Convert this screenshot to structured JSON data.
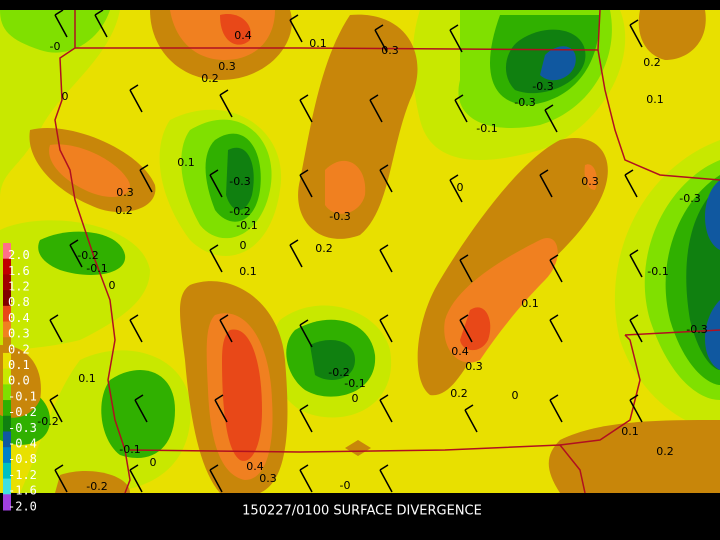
{
  "title": "150227/0100 SURFACE DIVERGENCE",
  "legend": {
    "levels": [
      {
        "label": "2.0",
        "color": "#ff7088"
      },
      {
        "label": "1.6",
        "color": "#c00000"
      },
      {
        "label": "1.2",
        "color": "#a00000"
      },
      {
        "label": "0.8",
        "color": "#800000"
      },
      {
        "label": "0.4",
        "color": "#e84818"
      },
      {
        "label": "0.3",
        "color": "#f08020"
      },
      {
        "label": "0.2",
        "color": "#c8860a"
      },
      {
        "label": "0.1",
        "color": "#e8e000"
      },
      {
        "label": "0.0",
        "color": "#c8e800"
      },
      {
        "label": "-0.1",
        "color": "#80e000"
      },
      {
        "label": "-0.2",
        "color": "#30b000"
      },
      {
        "label": "-0.3",
        "color": "#108010"
      },
      {
        "label": "-0.4",
        "color": "#1058a0"
      },
      {
        "label": "-0.8",
        "color": "#0080c8"
      },
      {
        "label": "-1.2",
        "color": "#00c0c0"
      },
      {
        "label": "-1.6",
        "color": "#40e0e0"
      },
      {
        "label": "-2.0",
        "color": "#a040e0"
      }
    ]
  },
  "contour_labels": [
    "-0",
    "0.4",
    "0.3",
    "0.2",
    "0.1",
    "0.3",
    "0",
    "0.2",
    "0.1",
    "-0.3",
    "-0.3",
    "-0.1",
    "0.1",
    "0.3",
    "0.2",
    "-0.3",
    "-0.2",
    "-0.1",
    "0",
    "-0.3",
    "0.3",
    "0",
    "-0.3",
    "0.2",
    "-0.2",
    "-0.1",
    "0.1",
    "0",
    "-0.1",
    "0.1",
    "-0.3",
    "0.4",
    "0.3",
    "-0.2",
    "-0.1",
    "0",
    "0.2",
    "0",
    "0.1",
    "-0.2",
    "-0.1",
    "0",
    "0.4",
    "0.3",
    "0.1",
    "0.2",
    "-0",
    "-0.2"
  ]
}
